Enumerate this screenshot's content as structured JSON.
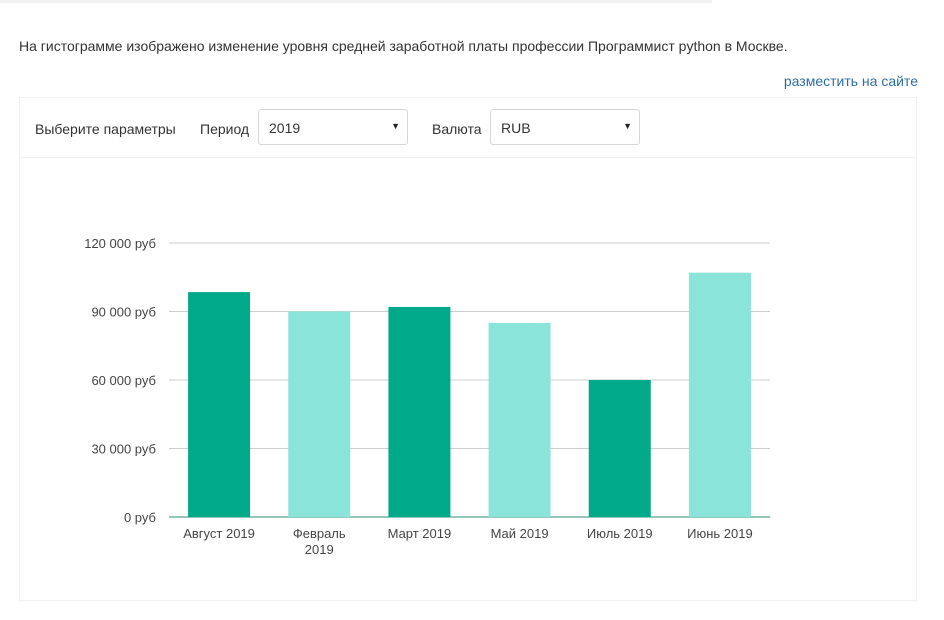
{
  "description": "На гистограмме изображено изменение уровня средней заработной платы профессии Программист python в Москве.",
  "embed_link": "разместить на сайте",
  "controls": {
    "prompt": "Выберите параметры",
    "period_label": "Период",
    "period_value": "2019",
    "currency_label": "Валюта",
    "currency_value": "RUB",
    "caret_icon": "▼"
  },
  "colors": {
    "dark": "#00aa88",
    "light": "#8be4da",
    "grid": "#cccccc",
    "axis": "#2b8c7a"
  },
  "chart_data": {
    "type": "bar",
    "title": "",
    "xlabel": "",
    "ylabel": "",
    "categories": [
      [
        "Август 2019"
      ],
      [
        "Февраль",
        "2019"
      ],
      [
        "Март 2019"
      ],
      [
        "Май 2019"
      ],
      [
        "Июль 2019"
      ],
      [
        "Июнь 2019"
      ]
    ],
    "values": [
      98500,
      90000,
      92000,
      85000,
      60000,
      107000
    ],
    "bar_colors": [
      "dark",
      "light",
      "dark",
      "light",
      "dark",
      "light"
    ],
    "ylim": [
      0,
      120000
    ],
    "yticks": [
      0,
      30000,
      60000,
      90000,
      120000
    ],
    "ytick_labels": [
      "0 руб",
      "30 000 руб",
      "60 000 руб",
      "90 000 руб",
      "120 000 руб"
    ],
    "grid": true,
    "legend": "none"
  }
}
